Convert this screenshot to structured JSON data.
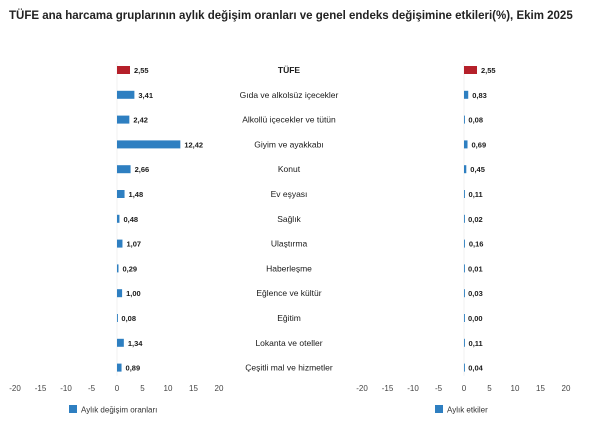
{
  "title": "TÜFE ana harcama gruplarının aylık değişim oranları ve genel endeks değişimine etkileri(%), Ekim 2025",
  "chart_data": {
    "type": "bar",
    "orientation": "horizontal",
    "title": "TÜFE ana harcama gruplarının aylık değişim oranları ve genel endeks değişimine etkileri(%), Ekim 2025",
    "categories": [
      "TÜFE",
      "Gıda ve alkolsüz içecekler",
      "Alkollü içecekler ve tütün",
      "Giyim ve ayakkabı",
      "Konut",
      "Ev eşyası",
      "Sağlık",
      "Ulaştırma",
      "Haberleşme",
      "Eğlence ve kültür",
      "Eğitim",
      "Lokanta ve oteller",
      "Çeşitli mal ve hizmetler"
    ],
    "highlight_category": "TÜFE",
    "colors": {
      "highlight": "#b5202a",
      "bar": "#2e7fc1"
    },
    "panels": [
      {
        "values": [
          2.55,
          3.41,
          2.42,
          12.42,
          2.66,
          1.48,
          0.48,
          1.07,
          0.29,
          1.0,
          0.08,
          1.34,
          0.89
        ],
        "labels": [
          "2,55",
          "3,41",
          "2,42",
          "12,42",
          "2,66",
          "1,48",
          "0,48",
          "1,07",
          "0,29",
          "1,00",
          "0,08",
          "1,34",
          "0,89"
        ],
        "xlim": [
          -20,
          20
        ],
        "ticks": [
          -20,
          -15,
          -10,
          -5,
          0,
          5,
          10,
          15,
          20
        ],
        "tick_labels": [
          "-20",
          "-15",
          "-10",
          "-5",
          "0",
          "5",
          "10",
          "15",
          "20"
        ],
        "legend": "Aylık değişim oranları"
      },
      {
        "values": [
          2.55,
          0.83,
          0.08,
          0.69,
          0.45,
          0.11,
          0.02,
          0.16,
          0.01,
          0.03,
          0.0,
          0.11,
          0.04
        ],
        "labels": [
          "2,55",
          "0,83",
          "0,08",
          "0,69",
          "0,45",
          "0,11",
          "0,02",
          "0,16",
          "0,01",
          "0,03",
          "0,00",
          "0,11",
          "0,04"
        ],
        "xlim": [
          -20,
          20
        ],
        "ticks": [
          -20,
          -15,
          -10,
          -5,
          0,
          5,
          10,
          15,
          20
        ],
        "tick_labels": [
          "-20",
          "-15",
          "-10",
          "-5",
          "0",
          "5",
          "10",
          "15",
          "20"
        ],
        "legend": "Aylık etkiler"
      }
    ],
    "grid": false,
    "legend_position": "bottom-left"
  }
}
